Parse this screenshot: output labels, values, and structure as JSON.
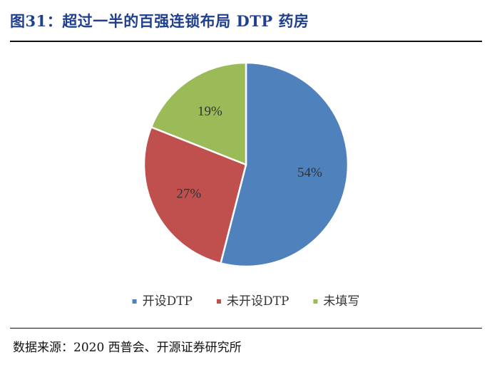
{
  "header": {
    "title": "图31：超过一半的百强连锁布局 DTP 药房"
  },
  "footer": {
    "source": "数据来源：2020 西普会、开源证券研究所"
  },
  "colors": {
    "series": [
      "#4f81bd",
      "#c0504d",
      "#9bbb59"
    ],
    "title": "#1f3f8f"
  },
  "chart_data": {
    "type": "pie",
    "title": "",
    "legend_position": "bottom",
    "start_angle_deg": 0,
    "direction": "clockwise",
    "slices": [
      {
        "name": "开设DTP",
        "value": 54,
        "label": "54%"
      },
      {
        "name": "未开设DTP",
        "value": 27,
        "label": "27%"
      },
      {
        "name": "未填写",
        "value": 19,
        "label": "19%"
      }
    ]
  }
}
